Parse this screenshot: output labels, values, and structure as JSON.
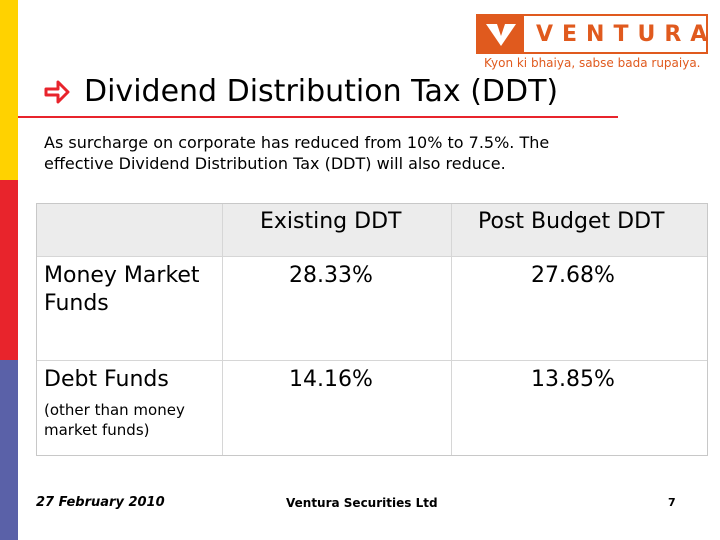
{
  "brand": {
    "name": "VENTURA",
    "tagline": "Kyon ki bhaiya, sabse bada rupaiya.",
    "orange": "#E05A1E"
  },
  "accent_colors": {
    "yellow": "#FFD200",
    "red": "#E8242C",
    "blue": "#5A61A8"
  },
  "slide": {
    "title_icon": "arrow-right-icon",
    "title": "Dividend Distribution Tax (DDT)",
    "intro_line1": "As surcharge on corporate has reduced from 10% to 7.5%. The",
    "intro_line2": "effective Dividend Distribution Tax (DDT) will also reduce."
  },
  "table": {
    "headers": [
      "",
      "Existing DDT",
      "Post Budget DDT"
    ],
    "rows": [
      {
        "label_line1": "Money Market",
        "label_line2": "Funds",
        "note_line1": "",
        "note_line2": "",
        "existing": "28.33%",
        "post_budget": "27.68%"
      },
      {
        "label_line1": "Debt Funds",
        "label_line2": "",
        "note_line1": "(other than money",
        "note_line2": "market funds)",
        "existing": "14.16%",
        "post_budget": "13.85%"
      }
    ]
  },
  "footer": {
    "date": "27 February 2010",
    "company": "Ventura Securities Ltd",
    "page": "7"
  }
}
